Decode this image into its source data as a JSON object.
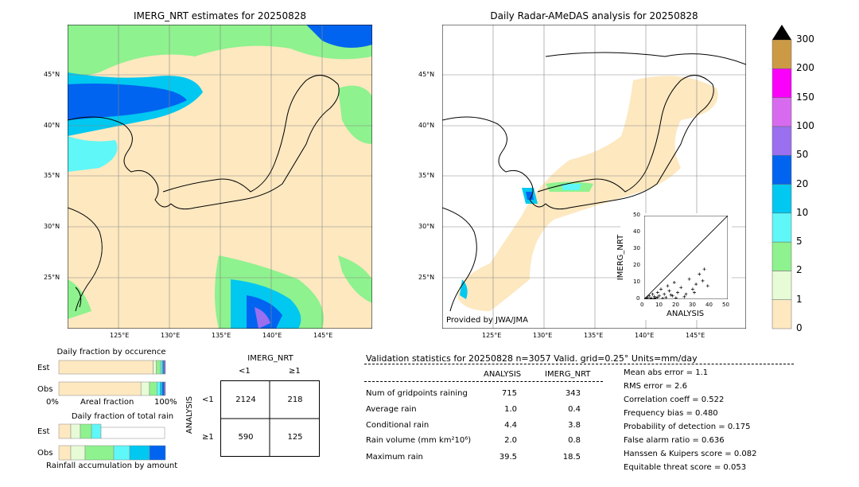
{
  "left_map": {
    "title": "IMERG_NRT estimates for 20250828",
    "lat_labels": [
      "45°N",
      "40°N",
      "35°N",
      "30°N",
      "25°N"
    ],
    "lon_labels": [
      "125°E",
      "130°E",
      "135°E",
      "140°E",
      "145°E"
    ]
  },
  "right_map": {
    "title": "Daily Radar-AMeDAS analysis for 20250828",
    "lat_labels": [
      "45°N",
      "40°N",
      "35°N",
      "30°N",
      "25°N"
    ],
    "lon_labels": [
      "125°E",
      "130°E",
      "135°E",
      "140°E",
      "145°E"
    ],
    "credit": "Provided by JWA/JMA"
  },
  "colorbar": {
    "ticks": [
      "0",
      "1",
      "2",
      "5",
      "10",
      "20",
      "50",
      "100",
      "150",
      "200",
      "300"
    ],
    "colors": [
      "#fde8c0",
      "#e6fbd6",
      "#8ef28e",
      "#5ff7f7",
      "#00c8f0",
      "#0064f0",
      "#9a6ff0",
      "#d86af0",
      "#fb00fb",
      "#cc9a44"
    ]
  },
  "inset": {
    "ylabel": "IMERG_NRT",
    "xlabel": "ANALYSIS",
    "ticks": [
      "0",
      "10",
      "20",
      "30",
      "40",
      "50"
    ]
  },
  "chart_data": {
    "type": "scatter",
    "x": [
      1,
      2,
      3,
      4,
      5,
      6,
      7,
      8,
      9,
      10,
      12,
      14,
      15,
      17,
      18,
      20,
      22,
      25,
      27,
      29,
      31,
      33,
      35,
      36,
      38,
      2,
      4,
      6,
      8,
      11,
      13,
      16,
      19,
      24,
      30
    ],
    "y": [
      0.5,
      1,
      2,
      0.3,
      3,
      1.5,
      0.8,
      4,
      2,
      6,
      3,
      8,
      5,
      2,
      10,
      4,
      7,
      3,
      12,
      6,
      9,
      15,
      11,
      18,
      8,
      0.2,
      0.6,
      0.4,
      1.2,
      0.5,
      1,
      2.5,
      0.7,
      1.5,
      4
    ],
    "xlim": [
      0,
      50
    ],
    "ylim": [
      0,
      50
    ],
    "xlabel": "ANALYSIS",
    "ylabel": "IMERG_NRT"
  },
  "fraction_occurrence": {
    "title": "Daily fraction by occurence",
    "rows": [
      "Est",
      "Obs"
    ],
    "xaxis_left": "0%",
    "xaxis_mid": "Areal fraction",
    "xaxis_right": "100%",
    "est_segments": [
      0.885,
      0.03,
      0.04,
      0.015,
      0.01,
      0.01,
      0.01
    ],
    "obs_segments": [
      0.77,
      0.08,
      0.07,
      0.03,
      0.02,
      0.02,
      0.01
    ]
  },
  "fraction_total": {
    "title": "Daily fraction of total rain",
    "rows": [
      "Est",
      "Obs"
    ],
    "xaxis_label": "Rainfall accumulation by amount"
  },
  "contingency": {
    "title": "IMERG_NRT",
    "col_lt": "<1",
    "col_ge": "≥1",
    "row_axis": "ANALYSIS",
    "row_lt": "<1",
    "row_ge": "≥1",
    "cells": [
      [
        "2124",
        "218"
      ],
      [
        "590",
        "125"
      ]
    ]
  },
  "validation": {
    "header": "Validation statistics for 20250828  n=3057 Valid. grid=0.25° Units=mm/day",
    "col_analysis": "ANALYSIS",
    "col_imerg": "IMERG_NRT",
    "rows": [
      {
        "label": "Num of gridpoints raining",
        "a": "715",
        "b": "343"
      },
      {
        "label": "Average rain",
        "a": "1.0",
        "b": "0.4"
      },
      {
        "label": "Conditional rain",
        "a": "4.4",
        "b": "3.8"
      },
      {
        "label": "Rain volume (mm km²10⁶)",
        "a": "2.0",
        "b": "0.8"
      },
      {
        "label": "Maximum rain",
        "a": "39.5",
        "b": "18.5"
      }
    ],
    "scores": [
      "Mean abs error =    1.1",
      "RMS error =    2.6",
      "Correlation coeff =  0.522",
      "Frequency bias =  0.480",
      "Probability of detection =  0.175",
      "False alarm ratio =  0.636",
      "Hanssen & Kuipers score =  0.082",
      "Equitable threat score =  0.053"
    ]
  }
}
